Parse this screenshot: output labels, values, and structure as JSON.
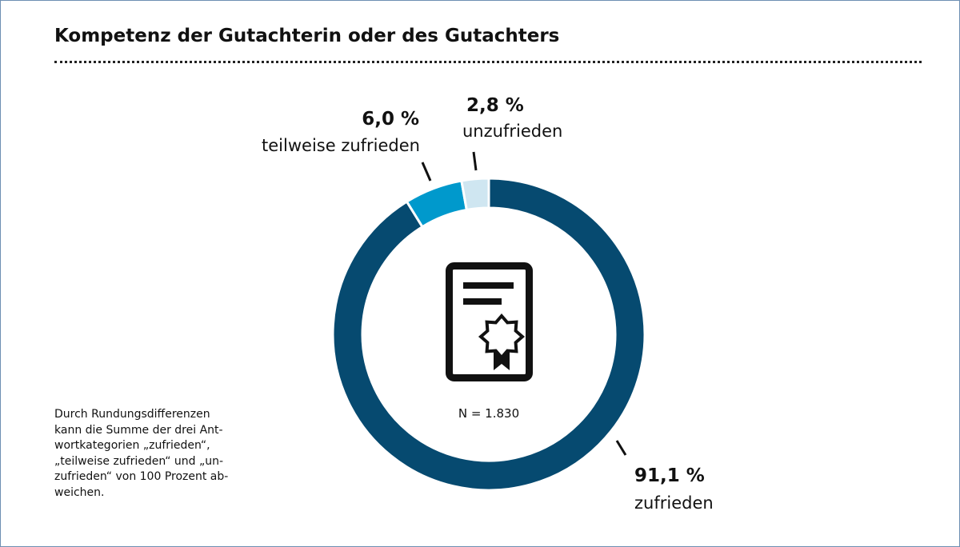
{
  "title": "Kompetenz der Gutachterin oder des Gutachters",
  "note": "Durch Rundungsdifferenzen\nkann die Summe der drei Ant-\nwortkategorien „zufrieden“,\n„teilweise zufrieden“ und „un-\nzufrieden“ von 100 Prozent ab-\nweichen.",
  "chart_data": {
    "type": "pie",
    "variant": "donut",
    "center_label": "N = 1.830",
    "center_icon": "certificate-icon",
    "slices": [
      {
        "label": "zufrieden",
        "value": 91.1,
        "value_label": "91,1 %",
        "color": "#064a70"
      },
      {
        "label": "teilweise zufrieden",
        "value": 6.0,
        "value_label": "6,0 %",
        "color": "#0099cc"
      },
      {
        "label": "unzufrieden",
        "value": 2.8,
        "value_label": "2,8 %",
        "color": "#cfe6f1"
      }
    ]
  }
}
